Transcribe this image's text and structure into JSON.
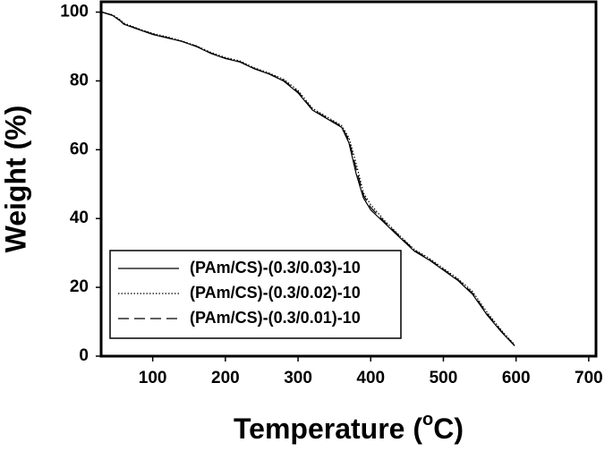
{
  "chart_data": {
    "type": "line",
    "xlabel": [
      "Temperature (",
      "o",
      "C)"
    ],
    "ylabel": "Weight (%)",
    "x": [
      30,
      45,
      55,
      60,
      80,
      100,
      120,
      140,
      160,
      180,
      200,
      220,
      240,
      260,
      280,
      300,
      320,
      340,
      360,
      370,
      380,
      390,
      400,
      420,
      440,
      460,
      480,
      500,
      520,
      540,
      560,
      580,
      598
    ],
    "series": [
      {
        "name": "(PAm/CS)-(0.3/0.03)-10",
        "color": "#000000",
        "style": "solid",
        "values": [
          100,
          99,
          97.5,
          96.5,
          95,
          93.5,
          92.5,
          91.5,
          90,
          88,
          86.5,
          85.5,
          83.5,
          82,
          80,
          76.5,
          71.5,
          69,
          66.5,
          62,
          53,
          46,
          42.5,
          38.5,
          34.5,
          30.5,
          28,
          25,
          22,
          18,
          12,
          7,
          3
        ]
      },
      {
        "name": "(PAm/CS)-(0.3/0.02)-10",
        "color": "#000000",
        "style": "dotted",
        "values": [
          100,
          99.2,
          97.8,
          96.8,
          95.2,
          93.8,
          92.8,
          91.6,
          90.2,
          88.3,
          86.8,
          85.8,
          83.8,
          82.3,
          80.5,
          77.2,
          72,
          69.5,
          67,
          63.5,
          56,
          47.5,
          44,
          39.2,
          35,
          31,
          28.5,
          25.5,
          22.5,
          18.8,
          12.8,
          7.5,
          3.3
        ]
      },
      {
        "name": "(PAm/CS)-(0.3/0.01)-10",
        "color": "#000000",
        "style": "dashed",
        "values": [
          100,
          99.1,
          97.6,
          96.6,
          95.1,
          93.6,
          92.6,
          91.5,
          90.1,
          88.1,
          86.6,
          85.6,
          83.6,
          82.1,
          80.2,
          76.8,
          71.7,
          69.2,
          66.7,
          62.8,
          54.5,
          46.8,
          43.2,
          38.8,
          34.8,
          30.8,
          28.2,
          25.2,
          22.2,
          18.3,
          12.3,
          7.2,
          3.1
        ]
      }
    ],
    "xlim": [
      29,
      710
    ],
    "ylim": [
      0,
      103
    ],
    "xticks": [
      100,
      200,
      300,
      400,
      500,
      600,
      700
    ],
    "yticks": [
      0,
      20,
      40,
      60,
      80,
      100
    ]
  }
}
